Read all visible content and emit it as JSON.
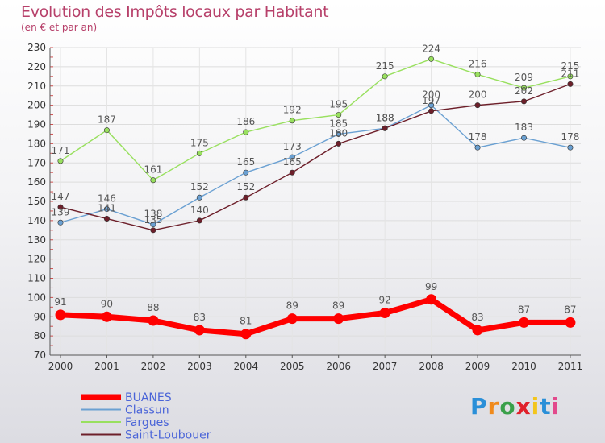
{
  "title": "Evolution des Impôts locaux par Habitant",
  "subtitle": "(en € et par an)",
  "logo": "Proxiti",
  "chart_data": {
    "type": "line",
    "title": "Evolution des Impôts locaux par Habitant",
    "subtitle": "(en € et par an)",
    "xlabel": "",
    "ylabel": "",
    "x": [
      "2000",
      "2001",
      "2002",
      "2003",
      "2004",
      "2005",
      "2006",
      "2007",
      "2008",
      "2009",
      "2010",
      "2011"
    ],
    "yticks": [
      70,
      80,
      90,
      100,
      110,
      120,
      130,
      140,
      150,
      160,
      170,
      180,
      190,
      200,
      210,
      220,
      230
    ],
    "ylim": [
      70,
      230
    ],
    "grid": true,
    "legend": "bottom-left",
    "series": [
      {
        "name": "BUANES",
        "color": "#ff0000",
        "values": [
          91,
          90,
          88,
          83,
          81,
          89,
          89,
          92,
          99,
          83,
          87,
          87
        ]
      },
      {
        "name": "Classun",
        "color": "#6aa0d2",
        "values": [
          139,
          146,
          138,
          152,
          165,
          173,
          185,
          188,
          200,
          178,
          183,
          178
        ]
      },
      {
        "name": "Fargues",
        "color": "#99e05f",
        "values": [
          171,
          187,
          161,
          175,
          186,
          192,
          195,
          215,
          224,
          216,
          209,
          215
        ]
      },
      {
        "name": "Saint-Loubouer",
        "color": "#6d1f2a",
        "values": [
          147,
          141,
          135,
          140,
          152,
          165,
          180,
          188,
          197,
          200,
          202,
          211
        ]
      }
    ]
  }
}
